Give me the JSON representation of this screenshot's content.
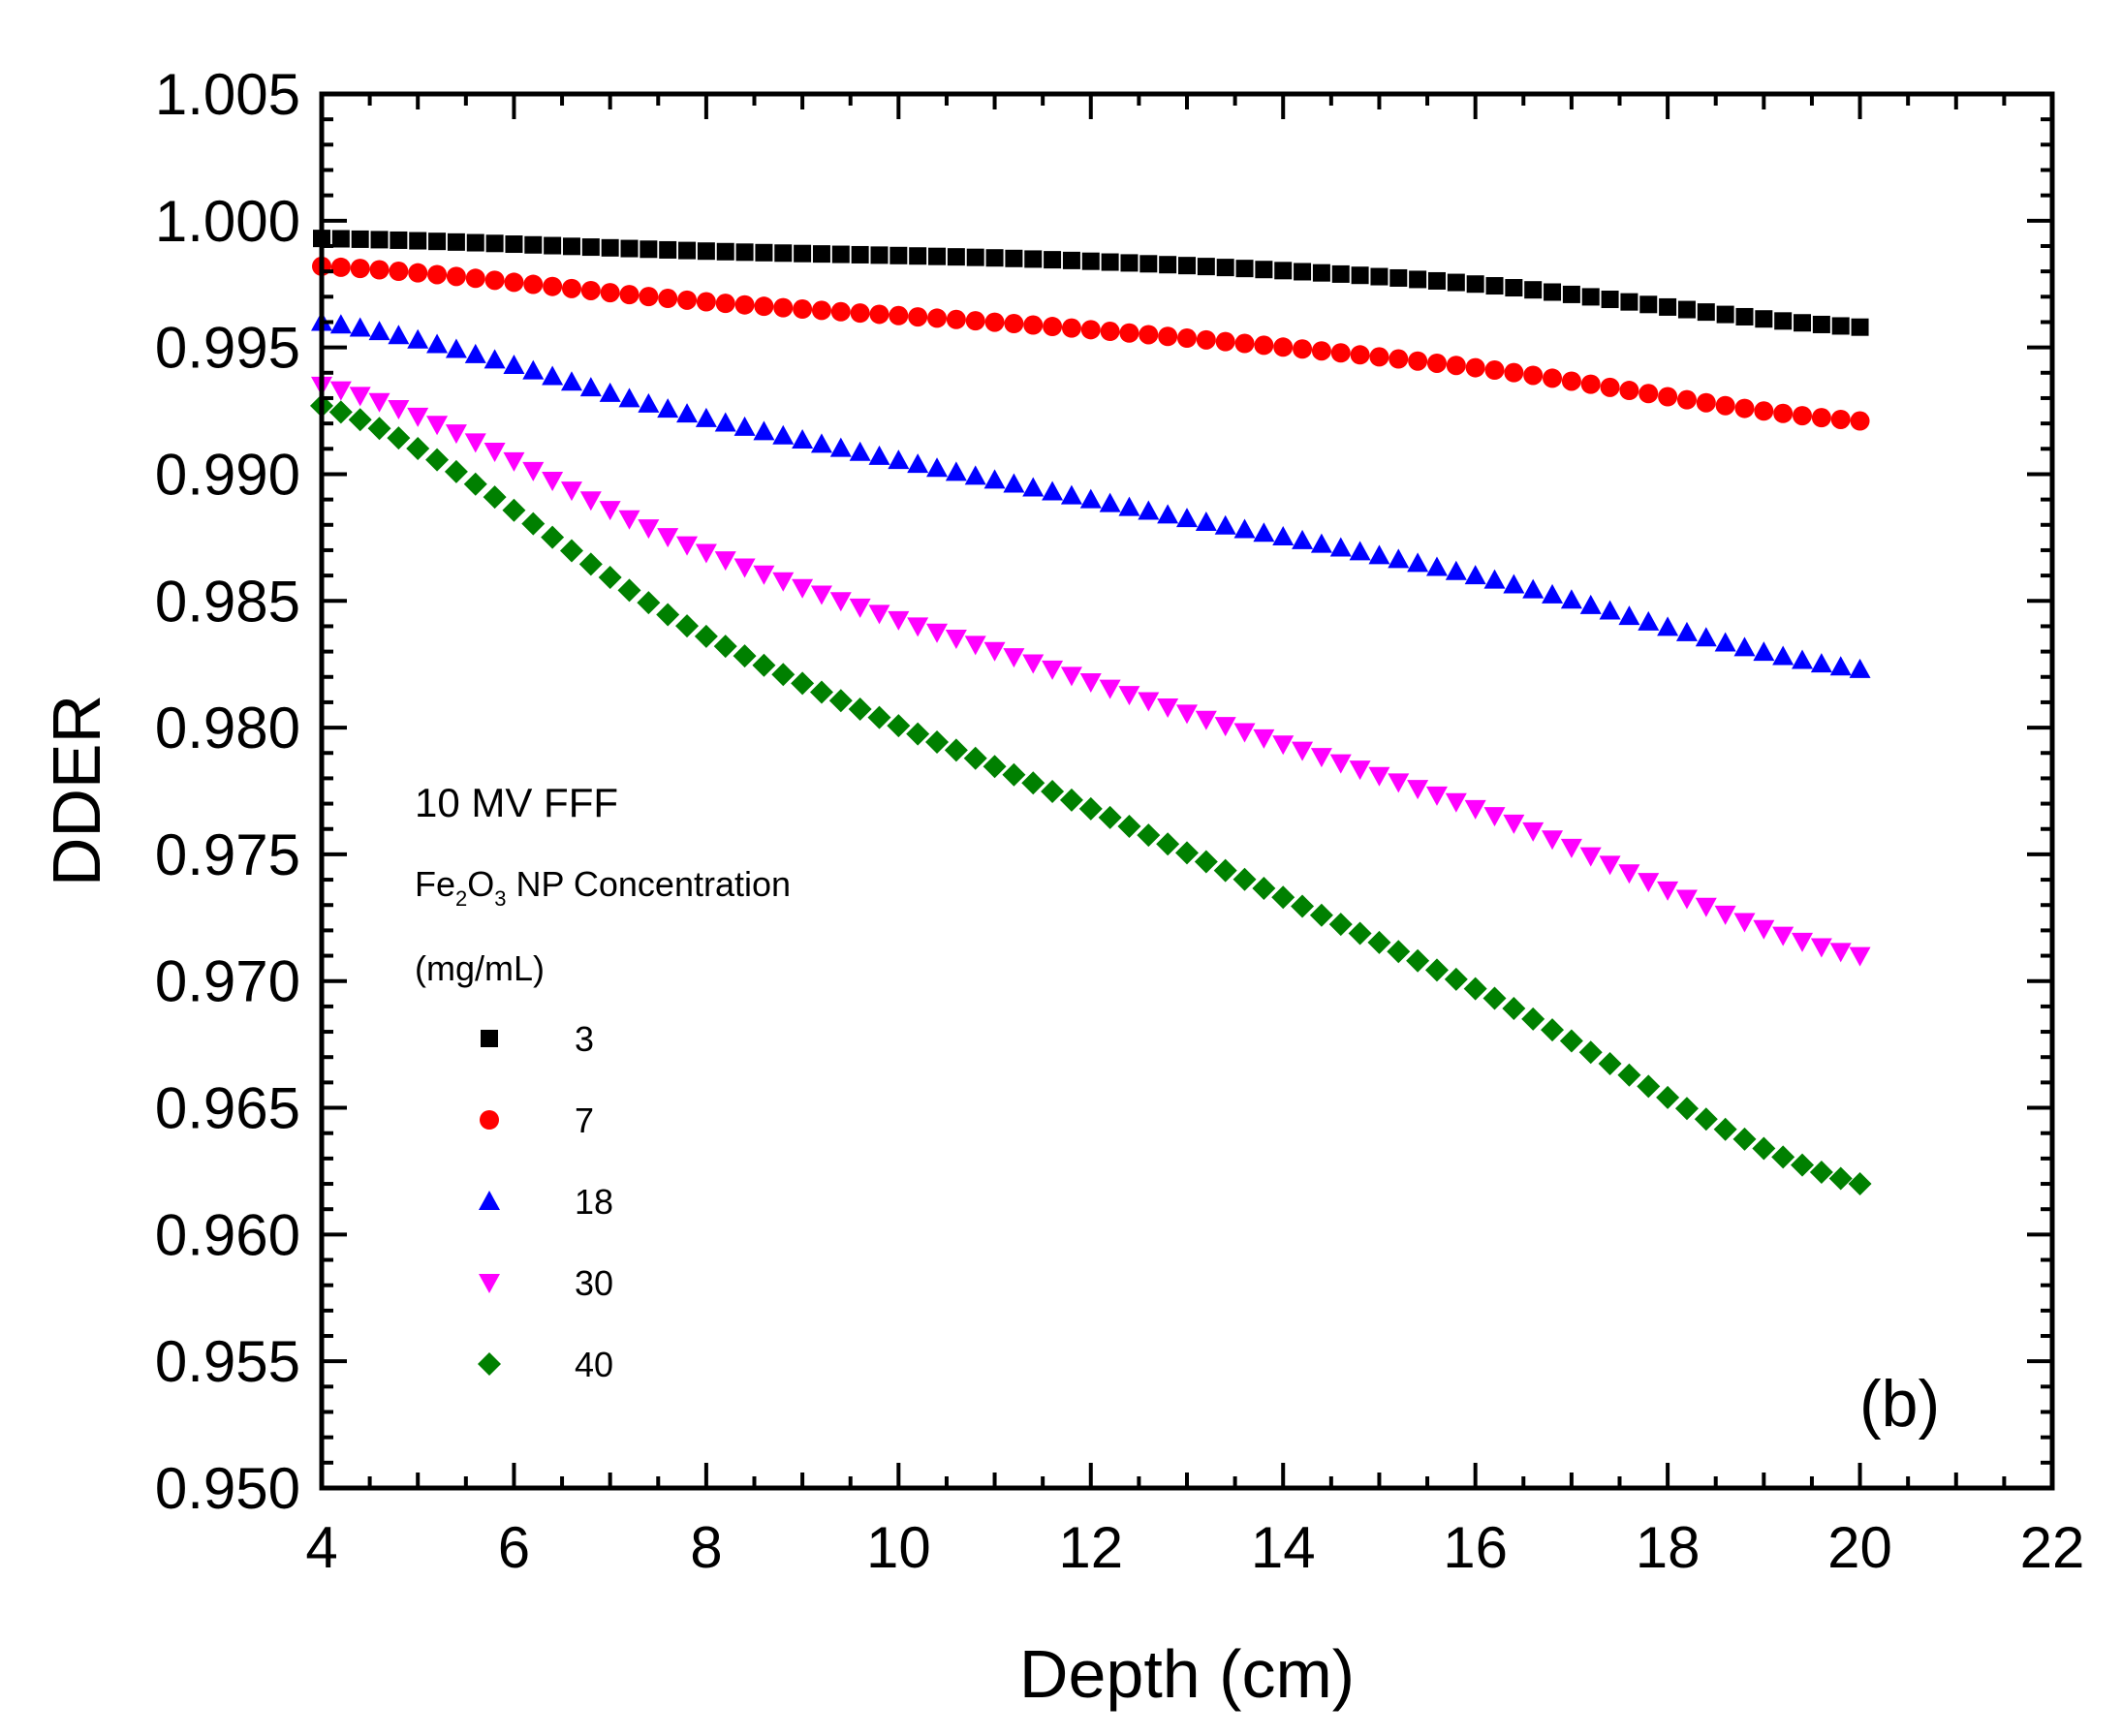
{
  "chart_data": {
    "type": "scatter",
    "title": "",
    "xlabel": "Depth (cm)",
    "ylabel": "DDER",
    "xlim": [
      4,
      22
    ],
    "ylim": [
      0.95,
      1.005
    ],
    "xticks": [
      "4",
      "6",
      "8",
      "10",
      "12",
      "14",
      "16",
      "18",
      "20",
      "22"
    ],
    "yticks": [
      "0.950",
      "0.955",
      "0.960",
      "0.965",
      "0.970",
      "0.975",
      "0.980",
      "0.985",
      "0.990",
      "0.995",
      "1.000",
      "1.005"
    ],
    "panel_label": "(b)",
    "legend": {
      "heading": "10 MV FFF",
      "concentration": {
        "prefix": "Fe",
        "sub1": "2",
        "mid": "O",
        "sub2": "3",
        "suffix": " NP Concentration"
      },
      "units": "(mg/mL)",
      "placement": "center-left"
    },
    "x_range": {
      "start": 4,
      "end": 20,
      "step": 0.2
    },
    "series": [
      {
        "name": "3",
        "marker": "square",
        "color": "#000000",
        "y_at": {
          "4": 0.9993,
          "8": 0.9988,
          "12": 0.9984,
          "16": 0.9975,
          "20": 0.9958
        }
      },
      {
        "name": "7",
        "marker": "circle",
        "color": "#ff0000",
        "y_at": {
          "4": 0.9982,
          "8": 0.9968,
          "12": 0.9957,
          "16": 0.9942,
          "20": 0.9921
        }
      },
      {
        "name": "18",
        "marker": "triangle-up",
        "color": "#0000ff",
        "y_at": {
          "4": 0.996,
          "8": 0.9922,
          "12": 0.989,
          "16": 0.986,
          "20": 0.9823
        }
      },
      {
        "name": "30",
        "marker": "triangle-down",
        "color": "#ff00ff",
        "y_at": {
          "4": 0.9935,
          "8": 0.9869,
          "12": 0.9818,
          "16": 0.9768,
          "20": 0.971
        }
      },
      {
        "name": "40",
        "marker": "diamond",
        "color": "#008000",
        "y_at": {
          "4": 0.9927,
          "8": 0.9836,
          "12": 0.9768,
          "16": 0.9697,
          "20": 0.962
        }
      }
    ]
  }
}
